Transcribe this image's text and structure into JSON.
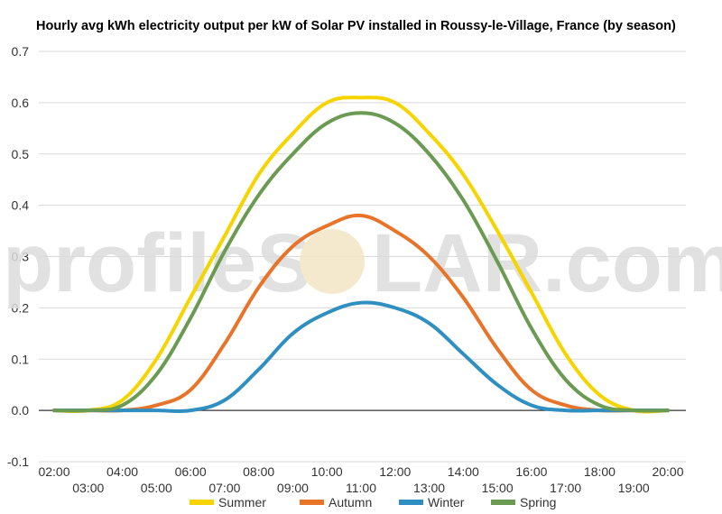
{
  "watermark": {
    "left": "profileS",
    "right": "LAR.com"
  },
  "chart_data": {
    "type": "line",
    "title": "Hourly avg kWh electricity output per kW of Solar PV installed in Roussy-le-Village, France (by season)",
    "xlabel": "",
    "ylabel": "",
    "ylim": [
      -0.1,
      0.7
    ],
    "yticks": [
      "-0.1",
      "0.0",
      "0.1",
      "0.2",
      "0.3",
      "0.4",
      "0.5",
      "0.6",
      "0.7"
    ],
    "x": [
      "02:00",
      "03:00",
      "04:00",
      "05:00",
      "06:00",
      "07:00",
      "08:00",
      "09:00",
      "10:00",
      "11:00",
      "12:00",
      "13:00",
      "14:00",
      "15:00",
      "16:00",
      "17:00",
      "18:00",
      "19:00",
      "20:00"
    ],
    "grid": true,
    "legend": "bottom",
    "series": [
      {
        "name": "Summer",
        "color": "#f5d400",
        "values": [
          0.0,
          0.0,
          0.02,
          0.1,
          0.22,
          0.34,
          0.46,
          0.54,
          0.6,
          0.61,
          0.6,
          0.54,
          0.46,
          0.35,
          0.23,
          0.11,
          0.03,
          0.0,
          0.0
        ]
      },
      {
        "name": "Autumn",
        "color": "#e8742a",
        "values": [
          0.0,
          0.0,
          0.0,
          0.01,
          0.04,
          0.13,
          0.24,
          0.32,
          0.36,
          0.38,
          0.35,
          0.3,
          0.22,
          0.12,
          0.04,
          0.01,
          0.0,
          0.0,
          0.0
        ]
      },
      {
        "name": "Winter",
        "color": "#2e8fc0",
        "values": [
          0.0,
          0.0,
          0.0,
          0.0,
          0.0,
          0.02,
          0.08,
          0.15,
          0.19,
          0.21,
          0.2,
          0.17,
          0.11,
          0.05,
          0.01,
          0.0,
          0.0,
          0.0,
          0.0
        ]
      },
      {
        "name": "Spring",
        "color": "#6b9a52",
        "values": [
          0.0,
          0.0,
          0.01,
          0.07,
          0.18,
          0.31,
          0.42,
          0.5,
          0.56,
          0.58,
          0.56,
          0.5,
          0.41,
          0.29,
          0.16,
          0.06,
          0.01,
          0.0,
          0.0
        ]
      }
    ]
  }
}
